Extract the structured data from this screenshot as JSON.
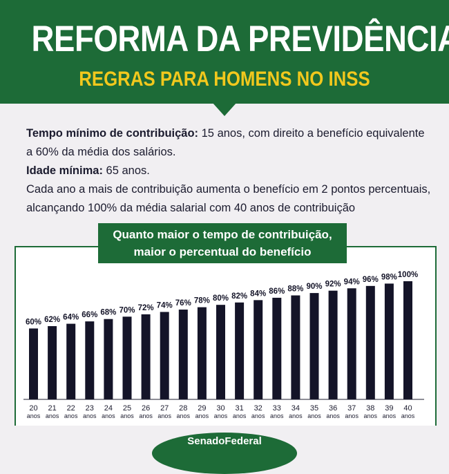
{
  "header": {
    "title": "REFORMA DA PREVIDÊNCIA",
    "subtitle": "REGRAS PARA HOMENS NO INSS"
  },
  "info": {
    "line1_label": "Tempo mínimo de contribuição:",
    "line1_text": " 15 anos, com direito a benefício equivalente a 60% da média dos salários.",
    "line2_label": "Idade mínima:",
    "line2_text": " 65 anos.",
    "line3_text": "Cada ano a mais de contribuição aumenta o benefício em 2 pontos percentuais, alcançando 100% da média salarial com 40 anos de contribuição"
  },
  "chart_title": {
    "line1": "Quanto maior o tempo de contribuição,",
    "line2": "maior o percentual do benefício"
  },
  "footer": {
    "brand": "SenadoFederal"
  },
  "colors": {
    "green": "#1d6b37",
    "yellow": "#f2c81d",
    "bar": "#141428",
    "background": "#f1eff2"
  },
  "chart_data": {
    "type": "bar",
    "categories": [
      "20",
      "21",
      "22",
      "23",
      "24",
      "25",
      "26",
      "27",
      "28",
      "29",
      "30",
      "31",
      "32",
      "33",
      "34",
      "35",
      "36",
      "37",
      "38",
      "39",
      "40"
    ],
    "category_unit": "anos",
    "values": [
      60,
      62,
      64,
      66,
      68,
      70,
      72,
      74,
      76,
      78,
      80,
      82,
      84,
      86,
      88,
      90,
      92,
      94,
      96,
      98,
      100
    ],
    "data_labels": [
      "60%",
      "62%",
      "64%",
      "66%",
      "68%",
      "70%",
      "72%",
      "74%",
      "76%",
      "78%",
      "80%",
      "82%",
      "84%",
      "86%",
      "88%",
      "90%",
      "92%",
      "94%",
      "96%",
      "98%",
      "100%"
    ],
    "xlabel": "",
    "ylabel": "",
    "ylim": [
      0,
      100
    ],
    "grid": false
  }
}
